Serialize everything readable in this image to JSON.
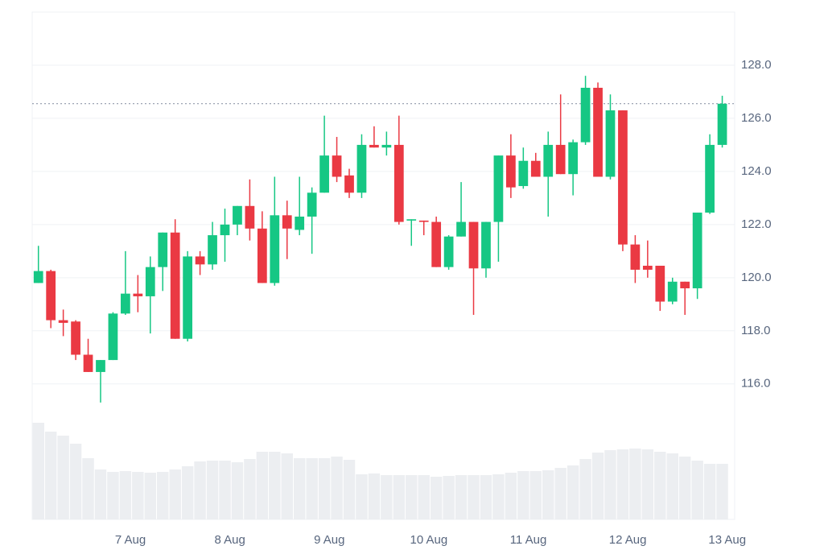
{
  "chart_data": {
    "type": "candlestick",
    "open": [
      119.8,
      120.25,
      118.4,
      118.35,
      117.1,
      116.45,
      116.9,
      118.65,
      119.4,
      119.3,
      120.4,
      121.7,
      117.7,
      120.8,
      120.5,
      121.6,
      122.0,
      122.7,
      121.85,
      119.8,
      122.35,
      121.8,
      122.3,
      123.2,
      124.6,
      123.85,
      123.2,
      125.0,
      124.9,
      125.0,
      122.15,
      122.15,
      122.1,
      120.4,
      121.55,
      122.1,
      120.35,
      122.1,
      124.6,
      123.45,
      124.4,
      123.8,
      125.0,
      123.9,
      125.1,
      127.15,
      123.8,
      126.3,
      121.25,
      120.45,
      120.45,
      119.1,
      119.85,
      119.6,
      122.45,
      125.0
    ],
    "high": [
      121.2,
      120.3,
      118.8,
      118.4,
      117.7,
      116.9,
      118.7,
      121.0,
      120.1,
      120.8,
      121.7,
      122.2,
      121.0,
      121.0,
      122.1,
      122.6,
      122.7,
      123.7,
      122.5,
      123.8,
      122.9,
      123.8,
      123.4,
      126.1,
      125.3,
      124.1,
      125.4,
      125.7,
      125.5,
      126.1,
      122.2,
      122.15,
      122.3,
      121.6,
      123.6,
      122.1,
      122.1,
      124.6,
      125.4,
      124.9,
      124.7,
      125.5,
      126.9,
      125.2,
      127.6,
      127.35,
      126.9,
      126.3,
      121.6,
      121.4,
      120.45,
      120.0,
      119.85,
      122.45,
      125.4,
      126.85
    ],
    "low": [
      119.8,
      118.1,
      117.8,
      116.9,
      116.45,
      115.3,
      116.9,
      118.6,
      118.7,
      117.9,
      119.5,
      117.7,
      117.6,
      120.1,
      120.3,
      120.6,
      121.6,
      121.4,
      119.8,
      119.7,
      120.7,
      121.6,
      120.9,
      123.2,
      123.6,
      123.0,
      123.0,
      124.9,
      124.6,
      122.0,
      121.2,
      121.6,
      120.4,
      120.3,
      121.55,
      118.6,
      120.0,
      120.6,
      123.0,
      123.35,
      123.8,
      122.3,
      123.9,
      123.1,
      125.0,
      123.8,
      123.7,
      121.0,
      119.8,
      120.0,
      118.75,
      119.0,
      118.6,
      119.2,
      122.4,
      124.9
    ],
    "close": [
      120.25,
      118.4,
      118.3,
      117.1,
      116.45,
      116.9,
      118.65,
      119.4,
      119.3,
      120.4,
      121.7,
      117.7,
      120.8,
      120.5,
      121.6,
      122.0,
      122.7,
      121.85,
      119.8,
      122.35,
      121.85,
      122.3,
      123.2,
      124.6,
      123.8,
      123.2,
      125.0,
      124.9,
      125.0,
      122.1,
      122.2,
      122.1,
      120.4,
      121.55,
      122.1,
      120.35,
      122.1,
      124.6,
      123.4,
      124.4,
      123.8,
      125.0,
      123.9,
      125.1,
      127.15,
      123.8,
      126.3,
      121.25,
      120.3,
      120.3,
      119.1,
      119.85,
      119.6,
      122.45,
      125.0,
      126.55
    ],
    "volume": [
      120,
      109,
      104,
      94,
      76,
      62,
      59,
      60,
      59,
      58,
      59,
      62,
      66,
      72,
      73,
      73,
      71,
      75,
      84,
      84,
      82,
      76,
      76,
      76,
      78,
      74,
      56,
      57,
      55,
      55,
      55,
      55,
      53,
      54,
      55,
      55,
      55,
      56,
      58,
      60,
      60,
      61,
      64,
      67,
      75,
      83,
      86,
      87,
      88,
      87,
      84,
      82,
      78,
      73,
      69,
      69
    ],
    "up_color": "#16c784",
    "down_color": "#ea3943",
    "volume_color": "#eceef1",
    "last_price": 126.55,
    "xlim": [
      -0.5,
      56
    ],
    "xticks": [
      {
        "value": 7.4,
        "label": "7 Aug"
      },
      {
        "value": 15.4,
        "label": "8 Aug"
      },
      {
        "value": 23.4,
        "label": "9 Aug"
      },
      {
        "value": 31.4,
        "label": "10 Aug"
      },
      {
        "value": 39.4,
        "label": "11 Aug"
      },
      {
        "value": 47.4,
        "label": "12 Aug"
      },
      {
        "value": 55.4,
        "label": "13 Aug"
      }
    ],
    "ylim": [
      110.9,
      130.0
    ],
    "yticks": [
      {
        "value": 116,
        "label": "116.0"
      },
      {
        "value": 118,
        "label": "118.0"
      },
      {
        "value": 120,
        "label": "120.0"
      },
      {
        "value": 122,
        "label": "122.0"
      },
      {
        "value": 124,
        "label": "124.0"
      },
      {
        "value": 126,
        "label": "126.0"
      },
      {
        "value": 128,
        "label": "128.0"
      }
    ],
    "volume_lim": [
      0,
      130
    ],
    "grid": true
  }
}
